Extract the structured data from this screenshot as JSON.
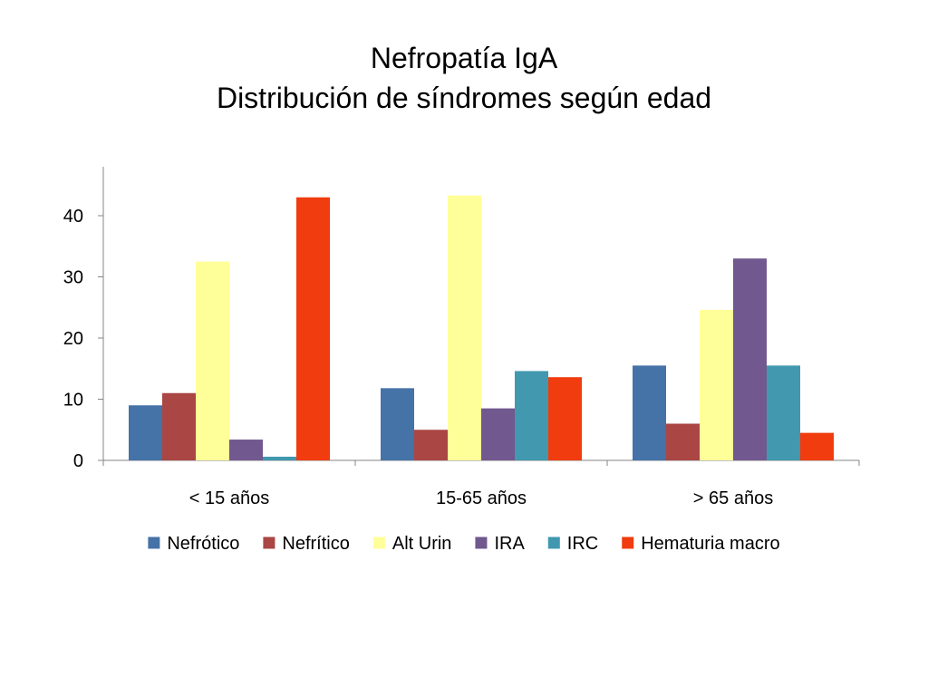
{
  "title": {
    "line1": "Nefropatía IgA",
    "line2": "Distribución de síndromes según edad"
  },
  "chart_data": {
    "type": "bar",
    "categories": [
      "< 15 años",
      "15-65 años",
      "> 65 años"
    ],
    "series": [
      {
        "name": "Nefrótico",
        "color": "#4572A7",
        "values": [
          9,
          11.8,
          15.5
        ]
      },
      {
        "name": "Nefrítico",
        "color": "#AA4643",
        "values": [
          11,
          5,
          6
        ]
      },
      {
        "name": "Alt Urin",
        "color": "#FFFF99",
        "values": [
          32.5,
          43.3,
          24.6
        ]
      },
      {
        "name": "IRA",
        "color": "#71588F",
        "values": [
          3.4,
          8.5,
          33
        ]
      },
      {
        "name": "IRC",
        "color": "#4198AF",
        "values": [
          0.6,
          14.6,
          15.5
        ]
      },
      {
        "name": "Hematuria macro",
        "color": "#F03C0F",
        "values": [
          43,
          13.6,
          4.5
        ]
      }
    ],
    "yticks": [
      0,
      10,
      20,
      30,
      40
    ],
    "ylim": [
      0,
      48
    ],
    "grid": false,
    "legend_position": "bottom"
  }
}
